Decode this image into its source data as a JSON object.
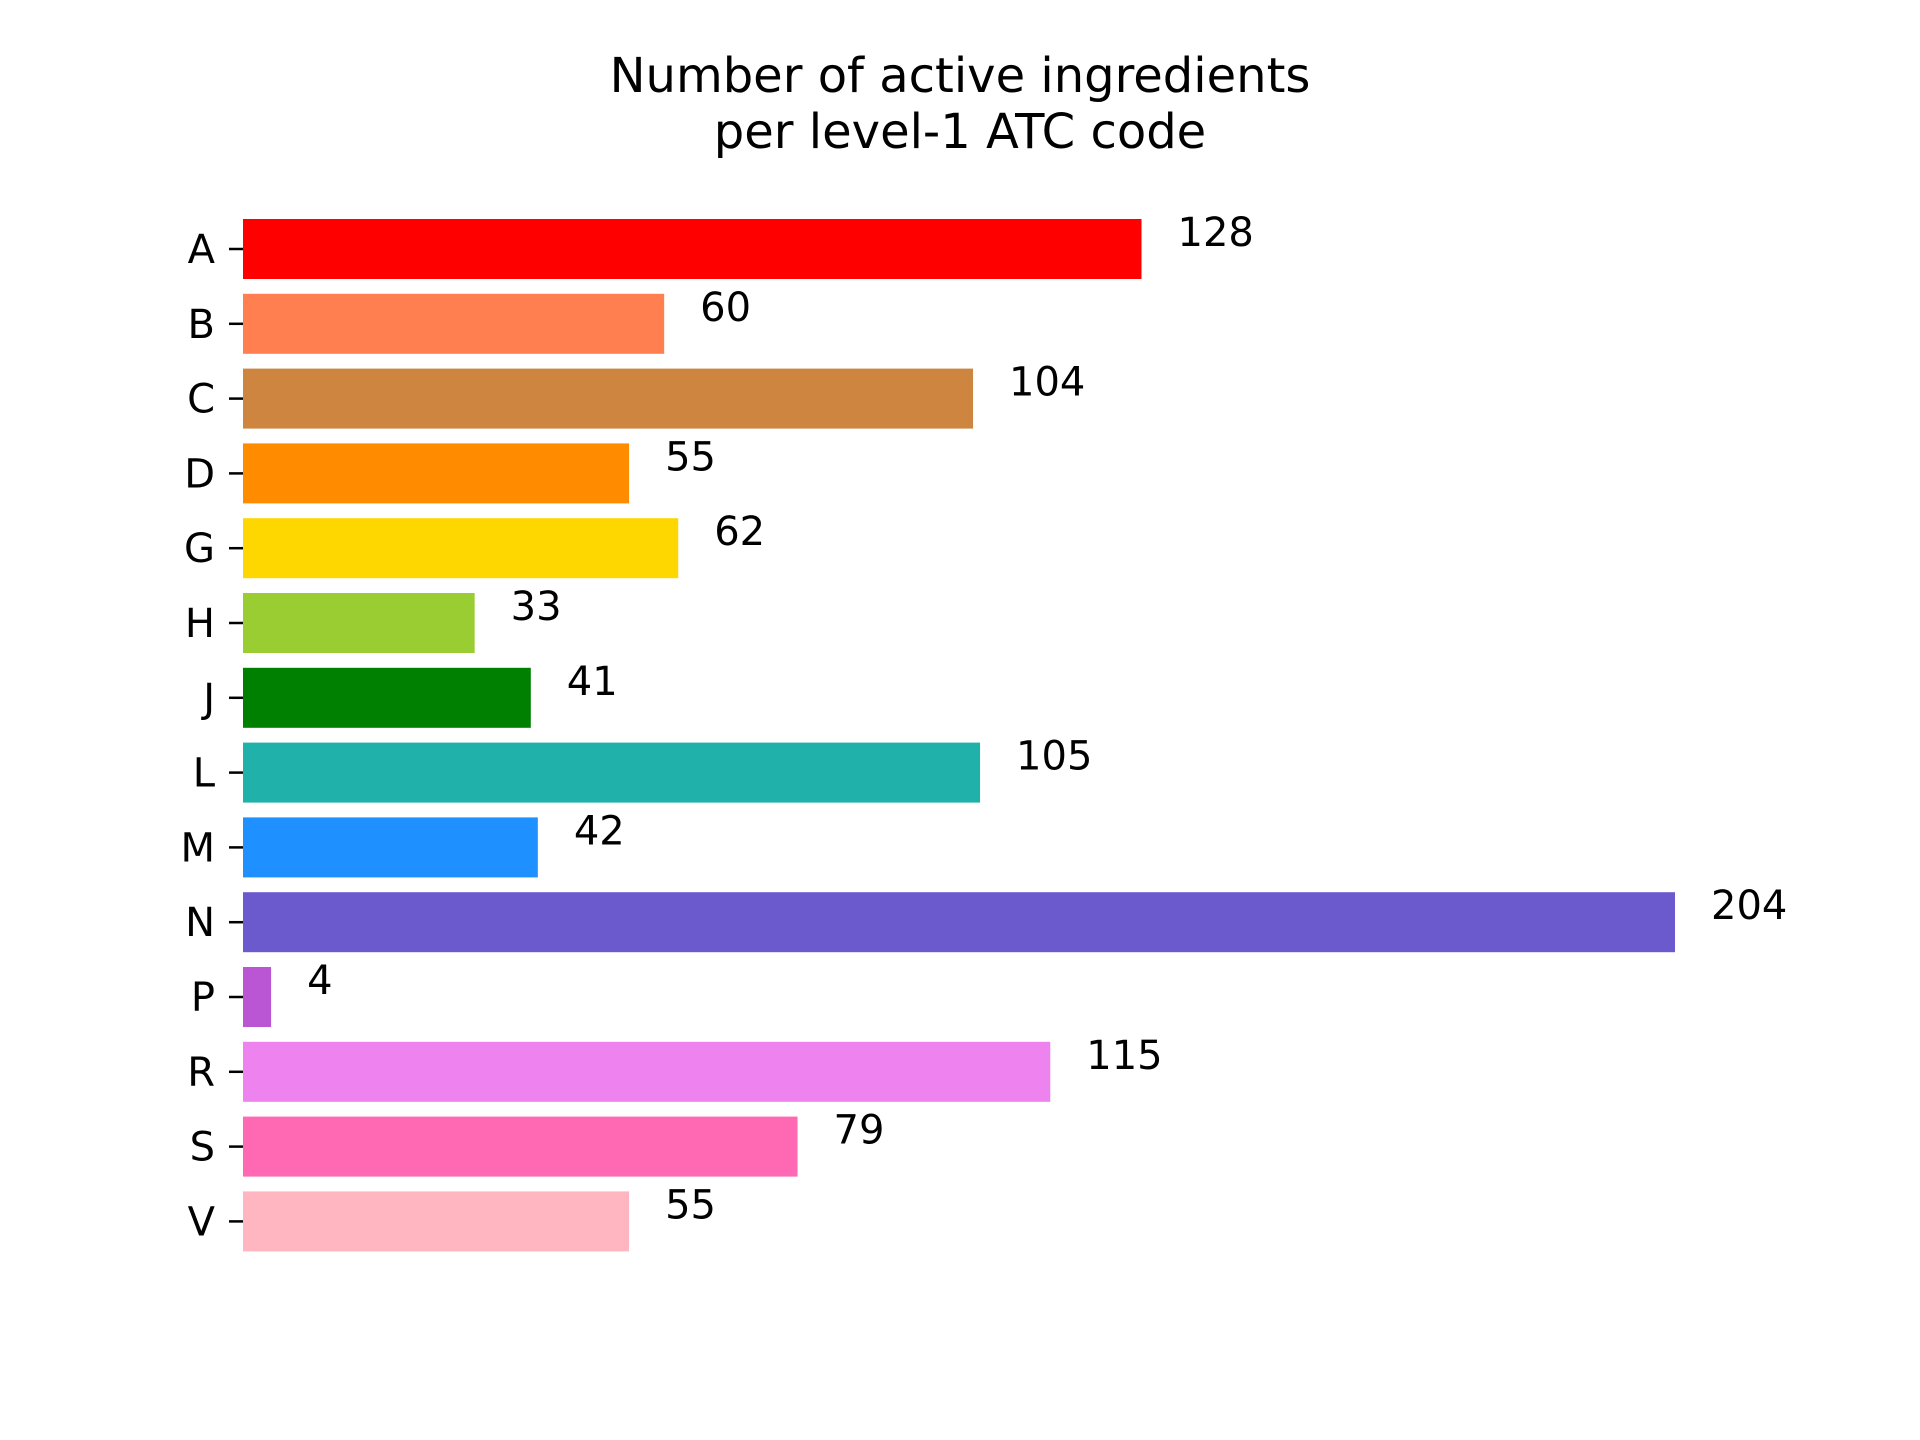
{
  "chart_data": {
    "type": "bar",
    "orientation": "horizontal",
    "title": [
      "Number of active ingredients",
      "per level-1 ATC code"
    ],
    "xlabel": "",
    "ylabel": "",
    "categories": [
      "A",
      "B",
      "C",
      "D",
      "G",
      "H",
      "J",
      "L",
      "M",
      "N",
      "P",
      "R",
      "S",
      "V"
    ],
    "values": [
      128,
      60,
      104,
      55,
      62,
      33,
      41,
      105,
      42,
      204,
      4,
      115,
      79,
      55
    ],
    "colors": [
      "#ff0000",
      "#ff7f50",
      "#cd853f",
      "#ff8c00",
      "#ffd700",
      "#9acd32",
      "#008000",
      "#20b2aa",
      "#1e90ff",
      "#6a5acd",
      "#ba55d3",
      "#ee82ee",
      "#ff69b4",
      "#ffb6c1"
    ],
    "xlim": [
      0,
      204
    ],
    "data_labels": true,
    "grid": false,
    "legend": "none",
    "x_axis_visible": false
  }
}
